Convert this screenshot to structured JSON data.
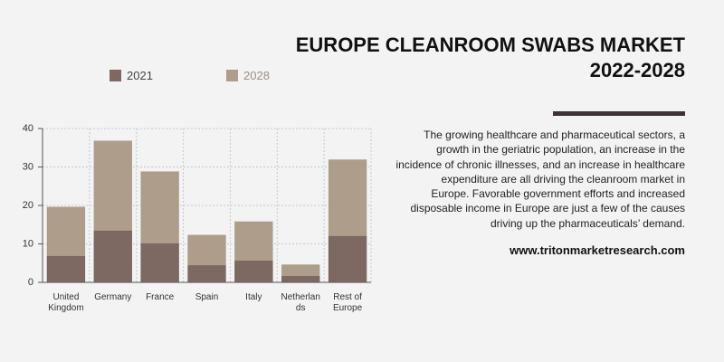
{
  "header": {
    "title_lines": [
      "EUROPE CLEANROOM SWABS MARKET",
      "2022-2028"
    ]
  },
  "text": {
    "lines": [
      "The growing healthcare and pharmaceutical sectors, a",
      "growth in the geriatric population, an increase in the",
      "incidence of chronic illnesses, and an increase in healthcare",
      "expenditure are all driving the cleanroom market in",
      "Europe. Favorable government efforts and increased",
      "disposable income in Europe are just a few of the causes",
      "driving up the pharmaceuticals’ demand."
    ],
    "url": "www.tritonmarketresearch.com"
  },
  "chart_data": {
    "type": "bar",
    "categories": [
      "United Kingdom",
      "Germany",
      "France",
      "Spain",
      "Italy",
      "Netherlands",
      "Rest of Europe"
    ],
    "series": [
      {
        "name": "2028",
        "color": "#ad9d8a",
        "values": [
          19.6,
          36.8,
          28.8,
          12.3,
          15.8,
          4.6,
          31.9
        ]
      },
      {
        "name": "2021",
        "color": "#7d6862",
        "values": [
          6.8,
          13.4,
          10.1,
          4.4,
          5.6,
          1.6,
          12.0
        ]
      }
    ],
    "ylim": [
      0,
      40
    ],
    "yticks": [
      0,
      10,
      20,
      30,
      40
    ],
    "grid": true
  }
}
